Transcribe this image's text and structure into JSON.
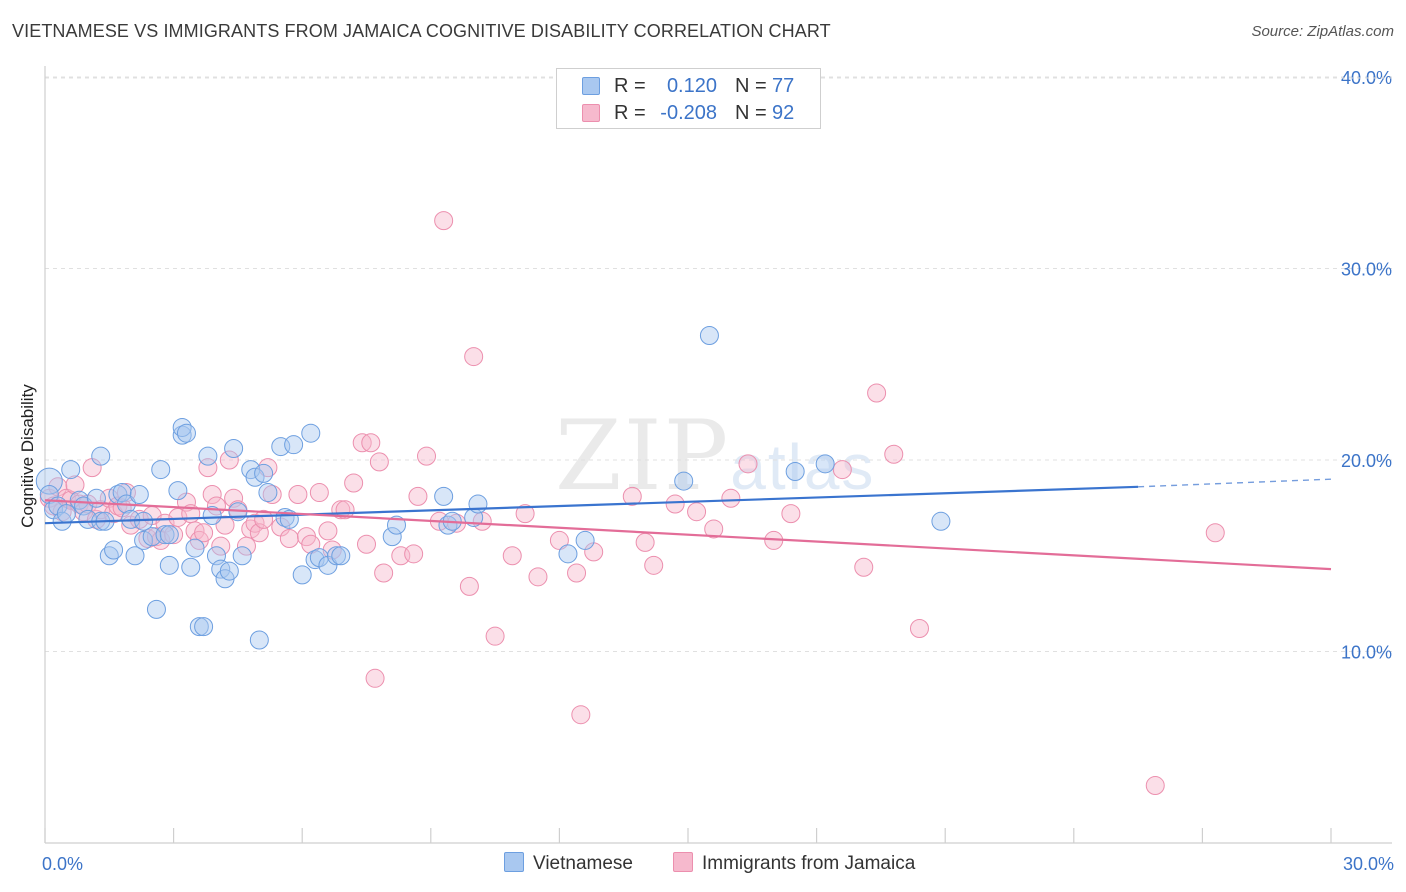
{
  "title": "VIETNAMESE VS IMMIGRANTS FROM JAMAICA COGNITIVE DISABILITY CORRELATION CHART",
  "source": "Source: ZipAtlas.com",
  "watermark": {
    "main": "ZIP",
    "sub": "atlas"
  },
  "legend": {
    "r_label": "R =",
    "n_label": "N =",
    "rows": [
      {
        "r": "0.120",
        "n": "77"
      },
      {
        "r": "-0.208",
        "n": "92"
      }
    ]
  },
  "colors": {
    "blue_fill": "#a9c8f0",
    "blue_stroke": "#6d9fe0",
    "blue_line": "#3a74cf",
    "pink_fill": "#f6b9cd",
    "pink_stroke": "#ec8fae",
    "pink_line": "#e36d98",
    "tick_label": "#3c74c8",
    "grid": "#e0e0e0"
  },
  "chart_data": {
    "type": "scatter",
    "title": "VIETNAMESE VS IMMIGRANTS FROM JAMAICA COGNITIVE DISABILITY CORRELATION CHART",
    "xlabel": "",
    "ylabel": "Cognitive Disability",
    "xlim": [
      0,
      30
    ],
    "ylim": [
      0,
      41
    ],
    "x_tick_labels": [
      {
        "value": 0,
        "label": "0.0%"
      },
      {
        "value": 30,
        "label": "30.0%"
      }
    ],
    "y_tick_labels": [
      {
        "value": 10,
        "label": "10.0%"
      },
      {
        "value": 20,
        "label": "20.0%"
      },
      {
        "value": 30,
        "label": "30.0%"
      },
      {
        "value": 40,
        "label": "40.0%"
      }
    ],
    "x_minor_ticks": [
      0,
      3,
      6,
      9,
      12,
      15,
      18,
      21,
      24,
      27,
      30
    ],
    "legend_position": "bottom-center",
    "series": [
      {
        "name": "Vietnamese",
        "color": "#6d9fe0",
        "r": 0.12,
        "n": 77,
        "trend": {
          "x0": 0,
          "y0": 16.7,
          "x1": 25.5,
          "y1": 18.6,
          "dashed_to_x": 30,
          "dashed_to_y": 19.0
        },
        "points": [
          [
            0.1,
            18.9
          ],
          [
            0.1,
            18.2
          ],
          [
            0.2,
            17.4
          ],
          [
            0.3,
            17.6
          ],
          [
            0.4,
            16.8
          ],
          [
            0.5,
            17.2
          ],
          [
            0.6,
            19.5
          ],
          [
            0.8,
            17.9
          ],
          [
            0.9,
            17.6
          ],
          [
            1.0,
            16.9
          ],
          [
            1.2,
            18.0
          ],
          [
            1.3,
            16.8
          ],
          [
            1.3,
            20.2
          ],
          [
            1.4,
            16.8
          ],
          [
            1.5,
            15.0
          ],
          [
            1.6,
            15.3
          ],
          [
            1.7,
            18.2
          ],
          [
            1.8,
            18.3
          ],
          [
            1.9,
            17.7
          ],
          [
            2.0,
            16.9
          ],
          [
            2.1,
            15.0
          ],
          [
            2.2,
            18.2
          ],
          [
            2.3,
            15.8
          ],
          [
            2.3,
            16.8
          ],
          [
            2.5,
            16.0
          ],
          [
            2.6,
            12.2
          ],
          [
            2.7,
            19.5
          ],
          [
            2.8,
            16.1
          ],
          [
            2.9,
            16.1
          ],
          [
            2.9,
            14.5
          ],
          [
            3.1,
            18.4
          ],
          [
            3.2,
            21.3
          ],
          [
            3.2,
            21.7
          ],
          [
            3.3,
            21.4
          ],
          [
            3.4,
            14.4
          ],
          [
            3.5,
            15.4
          ],
          [
            3.6,
            11.3
          ],
          [
            3.7,
            11.3
          ],
          [
            3.8,
            20.2
          ],
          [
            3.9,
            17.1
          ],
          [
            4.0,
            15.0
          ],
          [
            4.1,
            14.3
          ],
          [
            4.2,
            13.8
          ],
          [
            4.3,
            14.2
          ],
          [
            4.4,
            20.6
          ],
          [
            4.5,
            17.3
          ],
          [
            4.6,
            15.0
          ],
          [
            4.8,
            19.5
          ],
          [
            4.9,
            19.1
          ],
          [
            5.0,
            10.6
          ],
          [
            5.1,
            19.3
          ],
          [
            5.2,
            18.3
          ],
          [
            5.5,
            20.7
          ],
          [
            5.6,
            17.0
          ],
          [
            5.7,
            16.9
          ],
          [
            5.8,
            20.8
          ],
          [
            6.0,
            14.0
          ],
          [
            6.2,
            21.4
          ],
          [
            6.3,
            14.8
          ],
          [
            6.4,
            14.9
          ],
          [
            6.6,
            14.5
          ],
          [
            6.8,
            15.0
          ],
          [
            6.9,
            15.0
          ],
          [
            8.1,
            16.0
          ],
          [
            8.2,
            16.6
          ],
          [
            9.3,
            18.1
          ],
          [
            9.4,
            16.6
          ],
          [
            9.5,
            16.8
          ],
          [
            10.0,
            17.0
          ],
          [
            10.1,
            17.7
          ],
          [
            12.2,
            15.1
          ],
          [
            12.6,
            15.8
          ],
          [
            15.5,
            26.5
          ],
          [
            17.5,
            19.4
          ],
          [
            18.2,
            19.8
          ],
          [
            20.9,
            16.8
          ],
          [
            14.9,
            18.9
          ]
        ]
      },
      {
        "name": "Immigrants from Jamaica",
        "color": "#ec8fae",
        "r": -0.208,
        "n": 92,
        "trend": {
          "x0": 0,
          "y0": 17.9,
          "x1": 30,
          "y1": 14.3
        },
        "points": [
          [
            0.1,
            18.0
          ],
          [
            0.2,
            17.6
          ],
          [
            0.3,
            18.6
          ],
          [
            0.4,
            17.3
          ],
          [
            0.5,
            18.0
          ],
          [
            0.6,
            17.9
          ],
          [
            0.7,
            18.7
          ],
          [
            0.8,
            17.7
          ],
          [
            0.9,
            17.3
          ],
          [
            1.0,
            17.7
          ],
          [
            1.1,
            19.6
          ],
          [
            1.2,
            16.9
          ],
          [
            1.3,
            17.4
          ],
          [
            1.5,
            18.0
          ],
          [
            1.6,
            17.2
          ],
          [
            1.7,
            17.6
          ],
          [
            1.8,
            17.5
          ],
          [
            1.9,
            18.3
          ],
          [
            2.0,
            16.6
          ],
          [
            2.2,
            16.9
          ],
          [
            2.4,
            15.9
          ],
          [
            2.5,
            17.1
          ],
          [
            2.6,
            16.0
          ],
          [
            2.7,
            15.8
          ],
          [
            2.8,
            16.7
          ],
          [
            3.0,
            16.1
          ],
          [
            3.1,
            17.0
          ],
          [
            3.3,
            17.8
          ],
          [
            3.4,
            17.2
          ],
          [
            3.5,
            16.3
          ],
          [
            3.6,
            15.8
          ],
          [
            3.7,
            16.2
          ],
          [
            3.8,
            19.6
          ],
          [
            3.9,
            18.2
          ],
          [
            4.0,
            17.6
          ],
          [
            4.1,
            15.5
          ],
          [
            4.2,
            16.6
          ],
          [
            4.3,
            20.0
          ],
          [
            4.4,
            18.0
          ],
          [
            4.5,
            17.4
          ],
          [
            4.7,
            15.5
          ],
          [
            4.8,
            16.4
          ],
          [
            4.9,
            16.7
          ],
          [
            5.0,
            16.2
          ],
          [
            5.1,
            16.9
          ],
          [
            5.2,
            19.6
          ],
          [
            5.3,
            18.2
          ],
          [
            5.5,
            16.5
          ],
          [
            5.7,
            15.9
          ],
          [
            5.9,
            18.2
          ],
          [
            6.1,
            16.0
          ],
          [
            6.2,
            15.6
          ],
          [
            6.4,
            18.3
          ],
          [
            6.6,
            16.3
          ],
          [
            6.7,
            15.3
          ],
          [
            6.9,
            17.4
          ],
          [
            7.0,
            17.4
          ],
          [
            7.2,
            18.8
          ],
          [
            7.4,
            20.9
          ],
          [
            7.5,
            15.6
          ],
          [
            7.6,
            20.9
          ],
          [
            7.8,
            19.9
          ],
          [
            7.9,
            14.1
          ],
          [
            7.7,
            8.6
          ],
          [
            8.3,
            15.0
          ],
          [
            8.6,
            15.1
          ],
          [
            8.7,
            18.1
          ],
          [
            8.9,
            20.2
          ],
          [
            9.2,
            16.8
          ],
          [
            9.3,
            32.5
          ],
          [
            9.6,
            16.7
          ],
          [
            9.9,
            13.4
          ],
          [
            10.0,
            25.4
          ],
          [
            10.2,
            16.8
          ],
          [
            10.5,
            10.8
          ],
          [
            10.9,
            15.0
          ],
          [
            11.2,
            17.2
          ],
          [
            11.5,
            13.9
          ],
          [
            12.0,
            15.8
          ],
          [
            12.5,
            6.7
          ],
          [
            12.4,
            14.1
          ],
          [
            12.8,
            15.2
          ],
          [
            13.7,
            18.1
          ],
          [
            14.0,
            15.7
          ],
          [
            14.2,
            14.5
          ],
          [
            14.7,
            17.7
          ],
          [
            15.2,
            17.3
          ],
          [
            15.6,
            16.4
          ],
          [
            16.0,
            18.0
          ],
          [
            16.4,
            19.8
          ],
          [
            17.0,
            15.8
          ],
          [
            17.4,
            17.2
          ]
        ]
      }
    ],
    "extra_points_jamaica": [
      [
        18.6,
        19.5
      ],
      [
        19.1,
        14.4
      ],
      [
        19.4,
        23.5
      ],
      [
        19.8,
        20.3
      ],
      [
        20.4,
        11.2
      ],
      [
        25.9,
        3.0
      ],
      [
        27.3,
        16.2
      ]
    ]
  },
  "bottom_legend": [
    {
      "label": "Vietnamese"
    },
    {
      "label": "Immigrants from Jamaica"
    }
  ]
}
